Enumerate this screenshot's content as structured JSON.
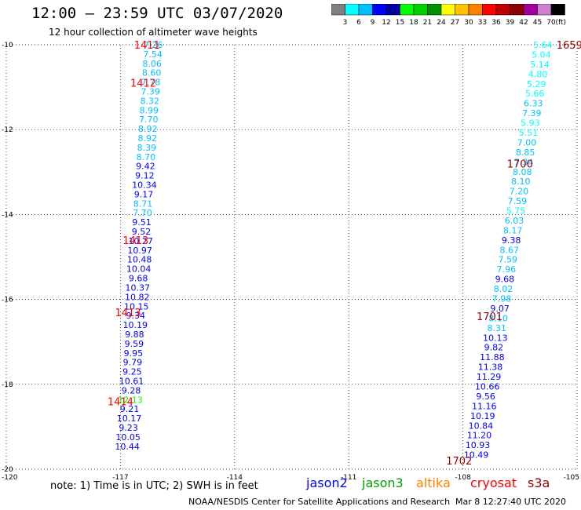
{
  "header": {
    "title": "12:00 – 23:59 UTC 03/07/2020",
    "subtitle": "12 hour collection of altimeter wave heights"
  },
  "colorbar": {
    "labels": [
      "3",
      "6",
      "9",
      "12",
      "15",
      "18",
      "21",
      "24",
      "27",
      "30",
      "33",
      "36",
      "39",
      "42",
      "45",
      "70"
    ],
    "unit": "(ft)",
    "colors": [
      "#7f7f7f",
      "#00ffff",
      "#00c0ff",
      "#0000ff",
      "#0000a0",
      "#00ff00",
      "#00d000",
      "#009000",
      "#ffff00",
      "#ffc000",
      "#ff8000",
      "#ff0000",
      "#c00000",
      "#900000",
      "#a000a0",
      "#d080d0",
      "#000000"
    ]
  },
  "footer": {
    "note": "note:  1) Time is in UTC; 2) SWH is in feet",
    "legend": [
      {
        "name": "jason2",
        "color": "#0000ff"
      },
      {
        "name": "jason3",
        "color": "#00a000"
      },
      {
        "name": "altika",
        "color": "#ff8000"
      },
      {
        "name": "cryosat",
        "color": "#ff0000"
      },
      {
        "name": "s3a",
        "color": "#900000"
      }
    ],
    "credit": "NOAA/NESDIS Center for Satellite Applications and Research",
    "generated": "Mar  8 12:27:40 UTC 2020"
  },
  "chart_data": {
    "type": "scatter",
    "xlim": [
      -120,
      -105
    ],
    "ylim": [
      -20,
      -10
    ],
    "x_ticks": [
      -120,
      -117,
      -114,
      -111,
      -108,
      -105
    ],
    "y_ticks": [
      -20,
      -18,
      -16,
      -14,
      -12,
      -10
    ],
    "x_tick_labels": [
      "-120",
      "-117",
      "-114",
      "-111",
      "-108",
      "-105"
    ],
    "y_tick_labels": [
      "-20",
      "-18",
      "-16",
      "-14",
      "-12",
      "-10"
    ],
    "grid": true,
    "tracks": [
      {
        "time_labels": [
          {
            "text": "1411",
            "lat": -10.0,
            "lon": -116.3,
            "color": "#ff0000"
          },
          {
            "text": "1412",
            "lat": -10.9,
            "lon": -116.4,
            "color": "#ff0000"
          },
          {
            "text": "1413",
            "lat": -14.6,
            "lon": -116.6,
            "color": "#ff0000"
          },
          {
            "text": "1413",
            "lat": -16.3,
            "lon": -116.8,
            "color": "#ff0000"
          },
          {
            "text": "1414",
            "lat": -18.4,
            "lon": -117.0,
            "color": "#ff0000"
          }
        ],
        "points": [
          {
            "lat": -10.0,
            "lon": -116.14,
            "value": "7.26",
            "color": "#00c0ff"
          },
          {
            "lat": -10.22,
            "lon": -116.15,
            "value": "7.54",
            "color": "#00c0ff"
          },
          {
            "lat": -10.44,
            "lon": -116.17,
            "value": "8.06",
            "color": "#00c0ff"
          },
          {
            "lat": -10.66,
            "lon": -116.18,
            "value": "8.60",
            "color": "#00c0ff"
          },
          {
            "lat": -10.88,
            "lon": -116.2,
            "value": "7.78",
            "color": "#00c0ff"
          },
          {
            "lat": -11.1,
            "lon": -116.21,
            "value": "7.39",
            "color": "#00c0ff"
          },
          {
            "lat": -11.32,
            "lon": -116.23,
            "value": "8.32",
            "color": "#00c0ff"
          },
          {
            "lat": -11.54,
            "lon": -116.25,
            "value": "8.99",
            "color": "#00c0ff"
          },
          {
            "lat": -11.76,
            "lon": -116.26,
            "value": "7.70",
            "color": "#00c0ff"
          },
          {
            "lat": -11.98,
            "lon": -116.28,
            "value": "8.92",
            "color": "#00c0ff"
          },
          {
            "lat": -12.2,
            "lon": -116.29,
            "value": "8.92",
            "color": "#00c0ff"
          },
          {
            "lat": -12.42,
            "lon": -116.31,
            "value": "8.39",
            "color": "#00c0ff"
          },
          {
            "lat": -12.64,
            "lon": -116.33,
            "value": "8.70",
            "color": "#00c0ff"
          },
          {
            "lat": -12.86,
            "lon": -116.34,
            "value": "9.42",
            "color": "#0000ff"
          },
          {
            "lat": -13.08,
            "lon": -116.36,
            "value": "9.12",
            "color": "#0000ff"
          },
          {
            "lat": -13.3,
            "lon": -116.37,
            "value": "10.34",
            "color": "#0000ff"
          },
          {
            "lat": -13.52,
            "lon": -116.39,
            "value": "9.17",
            "color": "#0000ff"
          },
          {
            "lat": -13.74,
            "lon": -116.41,
            "value": "8.71",
            "color": "#00c0ff"
          },
          {
            "lat": -13.96,
            "lon": -116.42,
            "value": "7.70",
            "color": "#00c0ff"
          },
          {
            "lat": -14.18,
            "lon": -116.44,
            "value": "9.51",
            "color": "#0000ff"
          },
          {
            "lat": -14.4,
            "lon": -116.45,
            "value": "9.52",
            "color": "#0000ff"
          },
          {
            "lat": -14.62,
            "lon": -116.47,
            "value": "10.27",
            "color": "#0000ff"
          },
          {
            "lat": -14.84,
            "lon": -116.49,
            "value": "10.97",
            "color": "#0000ff"
          },
          {
            "lat": -15.06,
            "lon": -116.5,
            "value": "10.48",
            "color": "#0000ff"
          },
          {
            "lat": -15.28,
            "lon": -116.52,
            "value": "10.04",
            "color": "#0000ff"
          },
          {
            "lat": -15.5,
            "lon": -116.53,
            "value": "9.68",
            "color": "#0000ff"
          },
          {
            "lat": -15.72,
            "lon": -116.55,
            "value": "10.37",
            "color": "#0000ff"
          },
          {
            "lat": -15.94,
            "lon": -116.56,
            "value": "10.82",
            "color": "#0000ff"
          },
          {
            "lat": -16.16,
            "lon": -116.58,
            "value": "10.15",
            "color": "#0000ff"
          },
          {
            "lat": -16.38,
            "lon": -116.6,
            "value": "9.34",
            "color": "#0000ff"
          },
          {
            "lat": -16.6,
            "lon": -116.61,
            "value": "10.19",
            "color": "#0000ff"
          },
          {
            "lat": -16.82,
            "lon": -116.63,
            "value": "9.88",
            "color": "#0000ff"
          },
          {
            "lat": -17.04,
            "lon": -116.64,
            "value": "9.59",
            "color": "#0000ff"
          },
          {
            "lat": -17.26,
            "lon": -116.66,
            "value": "9.95",
            "color": "#0000ff"
          },
          {
            "lat": -17.48,
            "lon": -116.68,
            "value": "9.79",
            "color": "#0000ff"
          },
          {
            "lat": -17.7,
            "lon": -116.69,
            "value": "9.25",
            "color": "#0000ff"
          },
          {
            "lat": -17.92,
            "lon": -116.71,
            "value": "10.61",
            "color": "#0000ff"
          },
          {
            "lat": -18.14,
            "lon": -116.72,
            "value": "9.28",
            "color": "#0000ff"
          },
          {
            "lat": -18.36,
            "lon": -116.74,
            "value": "12.13",
            "color": "#00ff00"
          },
          {
            "lat": -18.58,
            "lon": -116.76,
            "value": "9.21",
            "color": "#0000ff"
          },
          {
            "lat": -18.8,
            "lon": -116.77,
            "value": "10.17",
            "color": "#0000ff"
          },
          {
            "lat": -19.02,
            "lon": -116.79,
            "value": "9.23",
            "color": "#0000ff"
          },
          {
            "lat": -19.24,
            "lon": -116.8,
            "value": "10.05",
            "color": "#0000ff"
          },
          {
            "lat": -19.46,
            "lon": -116.82,
            "value": "10.44",
            "color": "#0000ff"
          }
        ]
      },
      {
        "time_labels": [
          {
            "text": "1659",
            "lat": -10.0,
            "lon": -105.2,
            "color": "#900000"
          },
          {
            "text": "1700",
            "lat": -12.8,
            "lon": -106.5,
            "color": "#900000"
          },
          {
            "text": "1701",
            "lat": -16.4,
            "lon": -107.3,
            "color": "#900000"
          },
          {
            "text": "1702",
            "lat": -19.8,
            "lon": -108.1,
            "color": "#900000"
          }
        ],
        "points": [
          {
            "lat": -10.0,
            "lon": -105.9,
            "value": "5.64",
            "color": "#00ffff"
          },
          {
            "lat": -10.23,
            "lon": -105.94,
            "value": "5.04",
            "color": "#00ffff"
          },
          {
            "lat": -10.46,
            "lon": -105.98,
            "value": "5.14",
            "color": "#00ffff"
          },
          {
            "lat": -10.69,
            "lon": -106.03,
            "value": "4.80",
            "color": "#00ffff"
          },
          {
            "lat": -10.92,
            "lon": -106.07,
            "value": "5.29",
            "color": "#00ffff"
          },
          {
            "lat": -11.15,
            "lon": -106.11,
            "value": "5.66",
            "color": "#00ffff"
          },
          {
            "lat": -11.38,
            "lon": -106.15,
            "value": "6.33",
            "color": "#00c0ff"
          },
          {
            "lat": -11.61,
            "lon": -106.19,
            "value": "7.39",
            "color": "#00c0ff"
          },
          {
            "lat": -11.84,
            "lon": -106.23,
            "value": "5.93",
            "color": "#00ffff"
          },
          {
            "lat": -12.07,
            "lon": -106.28,
            "value": "5.51",
            "color": "#00ffff"
          },
          {
            "lat": -12.3,
            "lon": -106.32,
            "value": "7.00",
            "color": "#00c0ff"
          },
          {
            "lat": -12.53,
            "lon": -106.36,
            "value": "8.85",
            "color": "#00c0ff"
          },
          {
            "lat": -12.76,
            "lon": -106.4,
            "value": "7.34",
            "color": "#00c0ff"
          },
          {
            "lat": -12.99,
            "lon": -106.44,
            "value": "8.08",
            "color": "#00c0ff"
          },
          {
            "lat": -13.22,
            "lon": -106.48,
            "value": "8.10",
            "color": "#00c0ff"
          },
          {
            "lat": -13.45,
            "lon": -106.53,
            "value": "7.20",
            "color": "#00c0ff"
          },
          {
            "lat": -13.68,
            "lon": -106.57,
            "value": "7.59",
            "color": "#00c0ff"
          },
          {
            "lat": -13.91,
            "lon": -106.61,
            "value": "5.75",
            "color": "#00ffff"
          },
          {
            "lat": -14.14,
            "lon": -106.65,
            "value": "6.03",
            "color": "#00c0ff"
          },
          {
            "lat": -14.37,
            "lon": -106.69,
            "value": "8.17",
            "color": "#00c0ff"
          },
          {
            "lat": -14.6,
            "lon": -106.73,
            "value": "9.38",
            "color": "#0000ff"
          },
          {
            "lat": -14.83,
            "lon": -106.78,
            "value": "8.67",
            "color": "#00c0ff"
          },
          {
            "lat": -15.06,
            "lon": -106.82,
            "value": "7.59",
            "color": "#00c0ff"
          },
          {
            "lat": -15.29,
            "lon": -106.86,
            "value": "7.96",
            "color": "#00c0ff"
          },
          {
            "lat": -15.52,
            "lon": -106.9,
            "value": "9.68",
            "color": "#0000ff"
          },
          {
            "lat": -15.75,
            "lon": -106.94,
            "value": "8.02",
            "color": "#00c0ff"
          },
          {
            "lat": -15.98,
            "lon": -106.98,
            "value": "7.98",
            "color": "#00c0ff"
          },
          {
            "lat": -16.21,
            "lon": -107.03,
            "value": "9.07",
            "color": "#0000ff"
          },
          {
            "lat": -16.44,
            "lon": -107.07,
            "value": "8.10",
            "color": "#00c0ff"
          },
          {
            "lat": -16.67,
            "lon": -107.11,
            "value": "8.31",
            "color": "#00c0ff"
          },
          {
            "lat": -16.9,
            "lon": -107.15,
            "value": "10.13",
            "color": "#0000ff"
          },
          {
            "lat": -17.13,
            "lon": -107.19,
            "value": "9.82",
            "color": "#0000ff"
          },
          {
            "lat": -17.36,
            "lon": -107.23,
            "value": "11.88",
            "color": "#0000ff"
          },
          {
            "lat": -17.59,
            "lon": -107.28,
            "value": "11.38",
            "color": "#0000ff"
          },
          {
            "lat": -17.82,
            "lon": -107.32,
            "value": "11.29",
            "color": "#0000ff"
          },
          {
            "lat": -18.05,
            "lon": -107.36,
            "value": "10.66",
            "color": "#0000ff"
          },
          {
            "lat": -18.28,
            "lon": -107.4,
            "value": "9.56",
            "color": "#0000ff"
          },
          {
            "lat": -18.51,
            "lon": -107.44,
            "value": "11.16",
            "color": "#0000ff"
          },
          {
            "lat": -18.74,
            "lon": -107.48,
            "value": "10.19",
            "color": "#0000ff"
          },
          {
            "lat": -18.97,
            "lon": -107.53,
            "value": "10.84",
            "color": "#0000ff"
          },
          {
            "lat": -19.2,
            "lon": -107.57,
            "value": "11.20",
            "color": "#0000ff"
          },
          {
            "lat": -19.43,
            "lon": -107.61,
            "value": "10.93",
            "color": "#0000ff"
          },
          {
            "lat": -19.66,
            "lon": -107.65,
            "value": "10.49",
            "color": "#0000ff"
          }
        ]
      }
    ]
  }
}
